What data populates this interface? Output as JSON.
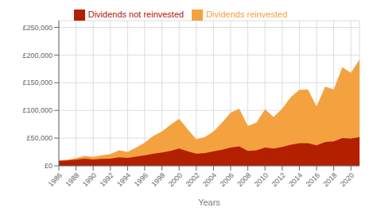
{
  "chart_data": {
    "type": "area",
    "xlabel": "Years",
    "x": [
      1986,
      1987,
      1988,
      1989,
      1990,
      1991,
      1992,
      1993,
      1994,
      1995,
      1996,
      1997,
      1998,
      1999,
      2000,
      2001,
      2002,
      2003,
      2004,
      2005,
      2006,
      2007,
      2008,
      2009,
      2010,
      2011,
      2012,
      2013,
      2014,
      2015,
      2016,
      2017,
      2018,
      2019,
      2020,
      2021
    ],
    "series": [
      {
        "name": "Dividends reinvested",
        "color": "#F4A240",
        "values": [
          10000,
          11000,
          14000,
          18000,
          16000,
          19000,
          21000,
          28000,
          25000,
          33000,
          42000,
          54000,
          62000,
          74000,
          85000,
          66000,
          48000,
          52000,
          62000,
          78000,
          96000,
          103000,
          72000,
          78000,
          102000,
          88000,
          103000,
          124000,
          137000,
          138000,
          107000,
          143000,
          138000,
          178000,
          168000,
          192000
        ]
      },
      {
        "name": "Dividends not reinvested",
        "color": "#B22000",
        "values": [
          9000,
          9500,
          11000,
          13000,
          11500,
          12500,
          13000,
          15500,
          14500,
          16500,
          19000,
          22000,
          24000,
          27000,
          31000,
          26000,
          22000,
          23000,
          26000,
          29000,
          33000,
          35000,
          27000,
          28000,
          33000,
          31000,
          34000,
          38000,
          41000,
          41000,
          37000,
          43000,
          44000,
          50000,
          49000,
          52000
        ]
      }
    ],
    "xlim": [
      1986,
      2021
    ],
    "xticks": [
      1986,
      1988,
      1990,
      1992,
      1994,
      1996,
      1998,
      2000,
      2002,
      2004,
      2006,
      2008,
      2010,
      2012,
      2014,
      2016,
      2018,
      2020
    ],
    "ylim": [
      0,
      262000
    ],
    "yticks": [
      {
        "value": 0,
        "label": "£0"
      },
      {
        "value": 50000,
        "label": "£50,000"
      },
      {
        "value": 100000,
        "label": "£100,000"
      },
      {
        "value": 150000,
        "label": "£150,000"
      },
      {
        "value": 200000,
        "label": "£200,000"
      },
      {
        "value": 250000,
        "label": "£250,000"
      }
    ],
    "grid": true,
    "legend": "top",
    "stacked": false
  }
}
